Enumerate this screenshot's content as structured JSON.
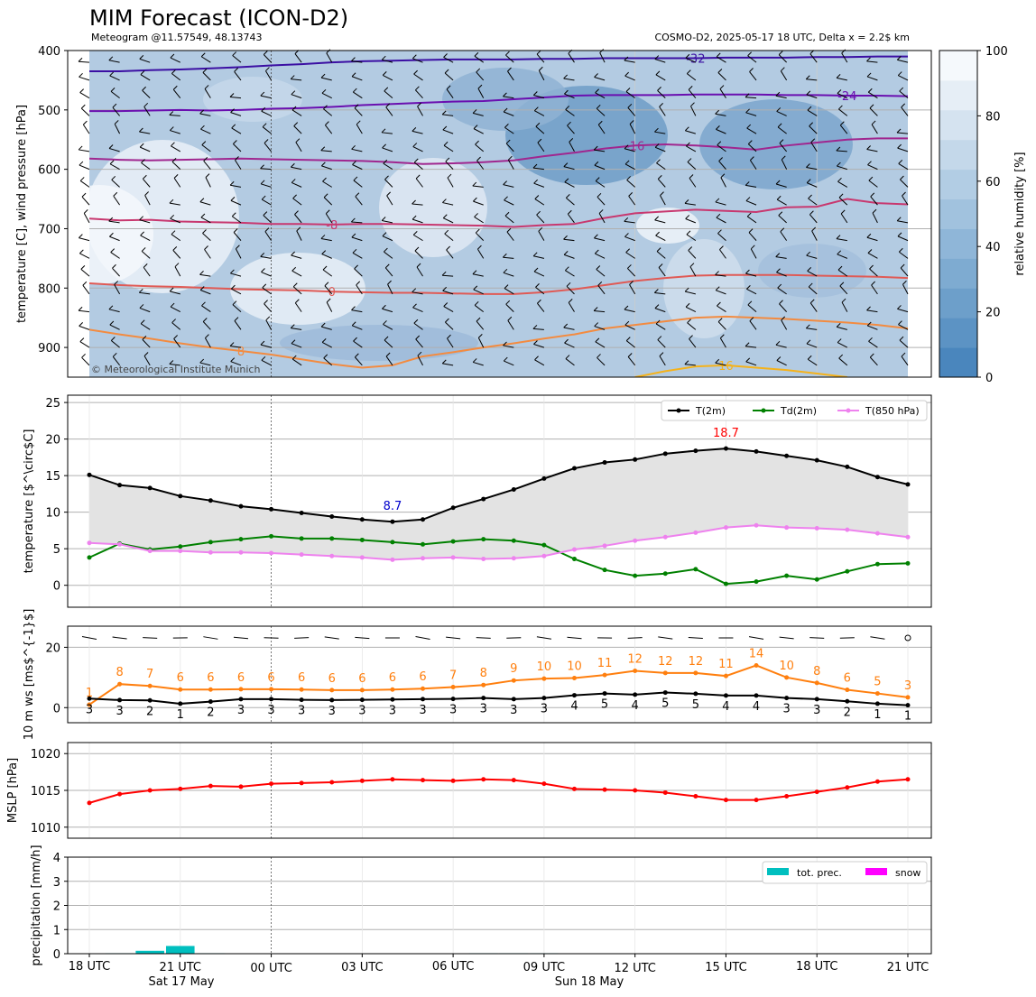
{
  "header": {
    "title": "MIM Forecast (ICON-D2)",
    "subtitle_left": "Meteogram @11.57549, 48.13743",
    "subtitle_right": "COSMO-D2, 2025-05-17 18 UTC, Delta x = 2.2$ km"
  },
  "x_axis": {
    "tick_labels": [
      "18 UTC",
      "21 UTC",
      "00 UTC",
      "03 UTC",
      "06 UTC",
      "09 UTC",
      "12 UTC",
      "15 UTC",
      "18 UTC",
      "21 UTC"
    ],
    "day_labels": [
      "Sat 17 May",
      "Sun 18 May"
    ]
  },
  "chart_data": [
    {
      "type": "heatmap",
      "name": "upper-air",
      "ylabel": "temperature [C], wind pressure [hPa]",
      "yticks": [
        400,
        500,
        600,
        700,
        800,
        900
      ],
      "ylim": [
        950,
        400
      ],
      "colorbar": {
        "label": "relative humidity [%]",
        "ticks": [
          "0",
          "20",
          "40",
          "60",
          "80",
          "100"
        ]
      },
      "copyright": "© Meteorological Institute Munich",
      "isotherms": [
        {
          "label": "-32",
          "color": "#3b0fa3",
          "values": [
            435,
            435,
            433,
            432,
            430,
            428,
            425,
            423,
            420,
            418,
            417,
            416,
            415,
            415,
            415,
            414,
            414,
            413,
            413,
            413,
            413,
            412,
            412,
            412,
            411,
            411,
            410,
            410
          ]
        },
        {
          "label": "-24",
          "color": "#6a0fb0",
          "values": [
            502,
            502,
            501,
            500,
            501,
            500,
            498,
            497,
            495,
            492,
            490,
            488,
            486,
            485,
            482,
            479,
            476,
            475,
            475,
            475,
            474,
            474,
            474,
            475,
            475,
            476,
            476,
            477
          ]
        },
        {
          "label": "-16",
          "color": "#a0268f",
          "values": [
            582,
            584,
            585,
            584,
            583,
            582,
            583,
            584,
            585,
            586,
            588,
            591,
            590,
            588,
            585,
            578,
            572,
            565,
            560,
            558,
            560,
            563,
            567,
            560,
            555,
            550,
            548,
            548
          ]
        },
        {
          "label": "-8",
          "color": "#c8386f",
          "values": [
            683,
            686,
            685,
            688,
            689,
            690,
            692,
            692,
            693,
            692,
            692,
            693,
            694,
            695,
            697,
            694,
            692,
            682,
            674,
            671,
            668,
            670,
            672,
            664,
            663,
            650,
            657,
            659
          ]
        },
        {
          "label": "0",
          "color": "#e05a55",
          "values": [
            792,
            795,
            797,
            798,
            800,
            802,
            803,
            804,
            806,
            807,
            808,
            808,
            809,
            810,
            810,
            807,
            802,
            795,
            788,
            783,
            779,
            778,
            778,
            778,
            779,
            780,
            781,
            783
          ]
        },
        {
          "label": "8",
          "color": "#f38b40",
          "values": [
            870,
            878,
            885,
            893,
            900,
            906,
            912,
            920,
            928,
            934,
            930,
            915,
            908,
            900,
            893,
            885,
            878,
            868,
            862,
            856,
            850,
            848,
            850,
            852,
            855,
            858,
            862,
            868
          ]
        },
        {
          "label": "16",
          "color": "#f5b21a",
          "values": [
            null,
            null,
            null,
            null,
            null,
            null,
            null,
            null,
            null,
            null,
            null,
            null,
            null,
            null,
            null,
            null,
            null,
            null,
            950,
            940,
            932,
            930,
            934,
            938,
            944,
            950,
            null,
            null
          ]
        }
      ]
    },
    {
      "type": "line",
      "name": "temperature",
      "ylabel": "temperature [$^\\circ$C]",
      "yticks": [
        "0",
        "5",
        "10",
        "15",
        "20",
        "25"
      ],
      "ylim": [
        -3,
        26
      ],
      "series": [
        {
          "name": "T(2m)",
          "color": "#000000",
          "values": [
            15.1,
            13.7,
            13.3,
            12.2,
            11.6,
            10.8,
            10.4,
            9.9,
            9.4,
            9.0,
            8.7,
            9.0,
            10.6,
            11.8,
            13.1,
            14.6,
            16.0,
            16.8,
            17.2,
            18.0,
            18.4,
            18.7,
            18.3,
            17.7,
            17.1,
            16.2,
            14.8,
            13.8
          ]
        },
        {
          "name": "Td(2m)",
          "color": "#008000",
          "values": [
            3.8,
            5.7,
            4.9,
            5.3,
            5.9,
            6.3,
            6.7,
            6.4,
            6.4,
            6.2,
            5.9,
            5.6,
            6.0,
            6.3,
            6.1,
            5.5,
            3.6,
            2.1,
            1.3,
            1.6,
            2.2,
            0.2,
            0.5,
            1.3,
            0.8,
            1.9,
            2.9,
            3.0
          ]
        },
        {
          "name": "T(850 hPa)",
          "color": "#ee82ee",
          "values": [
            5.8,
            5.6,
            4.7,
            4.7,
            4.5,
            4.5,
            4.4,
            4.2,
            4.0,
            3.8,
            3.5,
            3.7,
            3.8,
            3.6,
            3.7,
            4.0,
            4.9,
            5.4,
            6.1,
            6.6,
            7.2,
            7.9,
            8.2,
            7.9,
            7.8,
            7.6,
            7.1,
            6.6
          ]
        }
      ],
      "annotations": [
        {
          "text": "8.7",
          "color": "#0000cc",
          "index": 10
        },
        {
          "text": "18.7",
          "color": "#ff0000",
          "index": 21
        }
      ]
    },
    {
      "type": "line",
      "name": "wind",
      "ylabel": "10 m ws [ms$^{-1}$]",
      "yticks": [
        "0",
        "20"
      ],
      "ylim": [
        -5,
        27
      ],
      "series": [
        {
          "name": "gust",
          "color": "#ff7f0e",
          "values": [
            1.0,
            7.8,
            7.2,
            6.0,
            6.0,
            6.1,
            6.1,
            6.0,
            5.8,
            5.8,
            6.0,
            6.3,
            6.8,
            7.5,
            9.0,
            9.6,
            9.8,
            10.8,
            12.2,
            11.5,
            11.5,
            10.5,
            14.0,
            10.0,
            8.2,
            5.9,
            4.7,
            3.4
          ],
          "labels": [
            "1",
            "8",
            "7",
            "6",
            "6",
            "6",
            "6",
            "6",
            "6",
            "6",
            "6",
            "6",
            "7",
            "8",
            "9",
            "10",
            "10",
            "11",
            "12",
            "12",
            "12",
            "11",
            "14",
            "10",
            "8",
            "6",
            "5",
            "3"
          ]
        },
        {
          "name": "mean",
          "color": "#000000",
          "values": [
            3.0,
            2.5,
            2.4,
            1.3,
            2.0,
            2.8,
            2.8,
            2.6,
            2.5,
            2.6,
            2.7,
            2.8,
            2.9,
            3.2,
            2.8,
            3.2,
            4.1,
            4.7,
            4.3,
            5.0,
            4.6,
            4.0,
            4.0,
            3.2,
            2.8,
            2.1,
            1.3,
            0.8
          ],
          "labels": [
            "3",
            "3",
            "2",
            "1",
            "2",
            "3",
            "3",
            "3",
            "3",
            "3",
            "3",
            "3",
            "3",
            "3",
            "3",
            "3",
            "4",
            "5",
            "4",
            "5",
            "5",
            "4",
            "4",
            "3",
            "3",
            "2",
            "1",
            "1"
          ]
        }
      ]
    },
    {
      "type": "line",
      "name": "pressure",
      "ylabel": "MSLP [hPa]",
      "yticks": [
        "1010",
        "1015",
        "1020"
      ],
      "ylim": [
        1008.5,
        1021.5
      ],
      "series": [
        {
          "name": "MSLP",
          "color": "#ff0000",
          "values": [
            1013.3,
            1014.5,
            1015.0,
            1015.2,
            1015.6,
            1015.5,
            1015.9,
            1016.0,
            1016.1,
            1016.3,
            1016.5,
            1016.4,
            1016.3,
            1016.5,
            1016.4,
            1015.9,
            1015.2,
            1015.1,
            1015.0,
            1014.7,
            1014.2,
            1013.7,
            1013.7,
            1014.2,
            1014.8,
            1015.4,
            1016.2,
            1016.5
          ]
        }
      ]
    },
    {
      "type": "bar",
      "name": "precipitation",
      "ylabel": "precipitation [mm/h]",
      "yticks": [
        "0",
        "1",
        "2",
        "3",
        "4"
      ],
      "ylim": [
        0,
        4
      ],
      "legend": [
        "tot. prec.",
        "snow"
      ],
      "series": [
        {
          "name": "tot. prec.",
          "color": "#00bfbf",
          "values": [
            0,
            0.02,
            0.12,
            0.32,
            0.02,
            0.01,
            0,
            0,
            0,
            0,
            0,
            0,
            0,
            0.02,
            0.02,
            0.02,
            0,
            0,
            0,
            0,
            0,
            0,
            0.01,
            0,
            0,
            0,
            0,
            0
          ]
        }
      ]
    }
  ]
}
